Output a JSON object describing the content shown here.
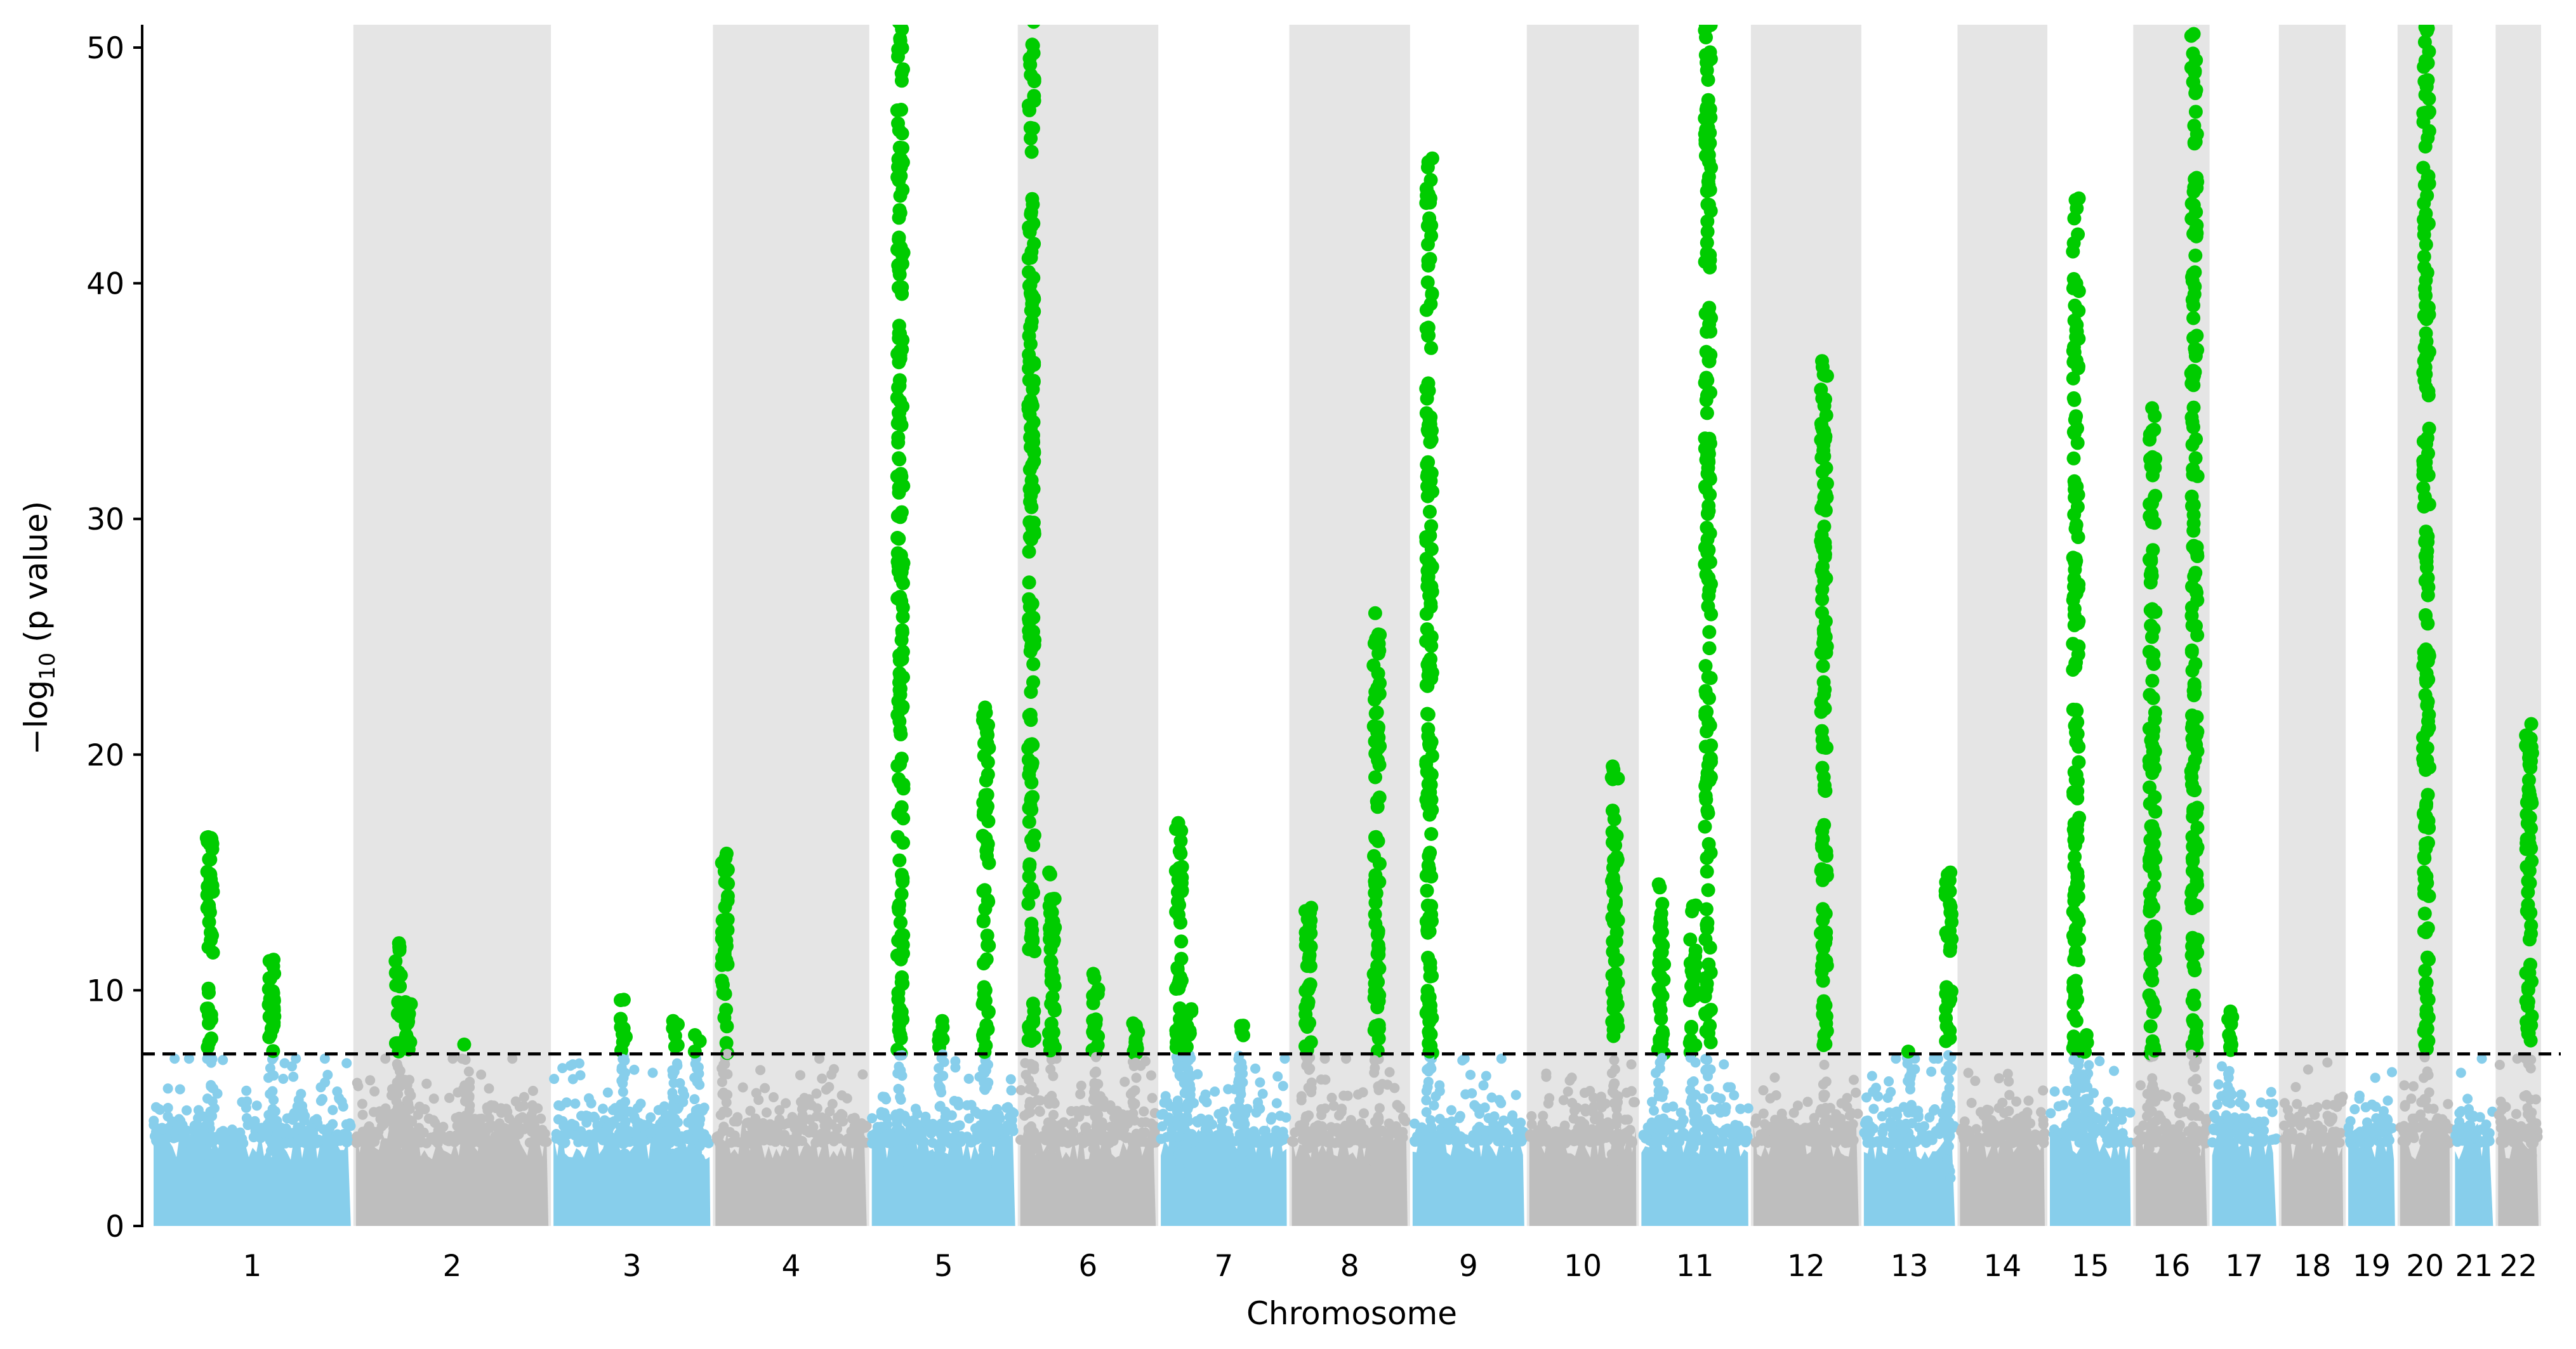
{
  "chart_data": {
    "type": "scatter",
    "subtype": "manhattan",
    "xlabel": "Chromosome",
    "ylabel": {
      "prefix": "−log",
      "sub": "10",
      "suffix": " (p value)"
    },
    "ylim": [
      0,
      51
    ],
    "yticks": [
      0,
      10,
      20,
      30,
      40,
      50
    ],
    "threshold": 7.3,
    "grid": false,
    "legend": "none",
    "colors": {
      "odd": "#87ceeb",
      "even": "#bebebe",
      "significant": "#00cc00",
      "band": "#e5e5e5",
      "threshold": "#000000"
    },
    "chromosomes": [
      {
        "label": "1",
        "length_mb": 249
      },
      {
        "label": "2",
        "length_mb": 243
      },
      {
        "label": "3",
        "length_mb": 198
      },
      {
        "label": "4",
        "length_mb": 191
      },
      {
        "label": "5",
        "length_mb": 181
      },
      {
        "label": "6",
        "length_mb": 171
      },
      {
        "label": "7",
        "length_mb": 159
      },
      {
        "label": "8",
        "length_mb": 146
      },
      {
        "label": "9",
        "length_mb": 141
      },
      {
        "label": "10",
        "length_mb": 135
      },
      {
        "label": "11",
        "length_mb": 135
      },
      {
        "label": "12",
        "length_mb": 133
      },
      {
        "label": "13",
        "length_mb": 115
      },
      {
        "label": "14",
        "length_mb": 107
      },
      {
        "label": "15",
        "length_mb": 102
      },
      {
        "label": "16",
        "length_mb": 90
      },
      {
        "label": "17",
        "length_mb": 81
      },
      {
        "label": "18",
        "length_mb": 78
      },
      {
        "label": "19",
        "length_mb": 59
      },
      {
        "label": "20",
        "length_mb": 63
      },
      {
        "label": "21",
        "length_mb": 48
      },
      {
        "label": "22",
        "length_mb": 51
      }
    ],
    "peaks": [
      {
        "chr": "1",
        "pos_mb": 71,
        "max": 16.5
      },
      {
        "chr": "1",
        "pos_mb": 149,
        "max": 11.3
      },
      {
        "chr": "2",
        "pos_mb": 53,
        "max": 12.0
      },
      {
        "chr": "2",
        "pos_mb": 66,
        "max": 9.5
      },
      {
        "chr": "2",
        "pos_mb": 140,
        "max": 7.7
      },
      {
        "chr": "3",
        "pos_mb": 88,
        "max": 9.6
      },
      {
        "chr": "3",
        "pos_mb": 153,
        "max": 8.7
      },
      {
        "chr": "3",
        "pos_mb": 181,
        "max": 8.1
      },
      {
        "chr": "4",
        "pos_mb": 12,
        "max": 15.8
      },
      {
        "chr": "5",
        "pos_mb": 36,
        "max": 55
      },
      {
        "chr": "5",
        "pos_mb": 88,
        "max": 8.7
      },
      {
        "chr": "5",
        "pos_mb": 144,
        "max": 22.0
      },
      {
        "chr": "6",
        "pos_mb": 14,
        "max": 55
      },
      {
        "chr": "6",
        "pos_mb": 40,
        "max": 15.0
      },
      {
        "chr": "6",
        "pos_mb": 95,
        "max": 10.7
      },
      {
        "chr": "6",
        "pos_mb": 145,
        "max": 8.6
      },
      {
        "chr": "7",
        "pos_mb": 23,
        "max": 17.1
      },
      {
        "chr": "7",
        "pos_mb": 35,
        "max": 9.2
      },
      {
        "chr": "7",
        "pos_mb": 101,
        "max": 8.5
      },
      {
        "chr": "8",
        "pos_mb": 21,
        "max": 13.5
      },
      {
        "chr": "8",
        "pos_mb": 107,
        "max": 26.0
      },
      {
        "chr": "9",
        "pos_mb": 21,
        "max": 45.3
      },
      {
        "chr": "10",
        "pos_mb": 108,
        "max": 19.5
      },
      {
        "chr": "11",
        "pos_mb": 25,
        "max": 14.5
      },
      {
        "chr": "11",
        "pos_mb": 65,
        "max": 13.6
      },
      {
        "chr": "11",
        "pos_mb": 84,
        "max": 55
      },
      {
        "chr": "12",
        "pos_mb": 89,
        "max": 36.7
      },
      {
        "chr": "13",
        "pos_mb": 58,
        "max": 7.4
      },
      {
        "chr": "13",
        "pos_mb": 107,
        "max": 15.0
      },
      {
        "chr": "15",
        "pos_mb": 33,
        "max": 43.6
      },
      {
        "chr": "15",
        "pos_mb": 45,
        "max": 8.1
      },
      {
        "chr": "16",
        "pos_mb": 21,
        "max": 34.7
      },
      {
        "chr": "16",
        "pos_mb": 74,
        "max": 55
      },
      {
        "chr": "17",
        "pos_mb": 22,
        "max": 9.1
      },
      {
        "chr": "20",
        "pos_mb": 33,
        "max": 55
      },
      {
        "chr": "22",
        "pos_mb": 39,
        "max": 21.3
      }
    ]
  }
}
